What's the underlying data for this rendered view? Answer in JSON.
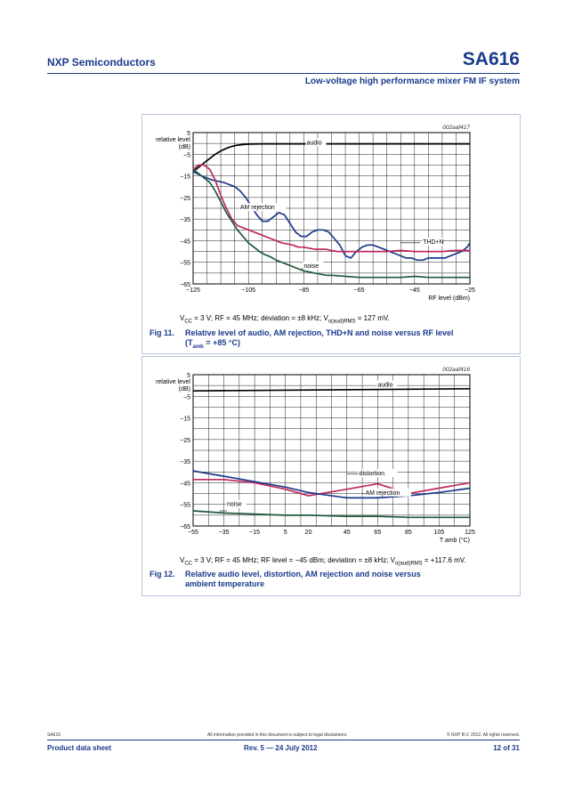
{
  "header": {
    "company": "NXP Semiconductors",
    "product": "SA616",
    "subtitle": "Low-voltage high performance mixer FM IF system"
  },
  "figures": [
    {
      "id": "fig11",
      "code": "002aaf417",
      "caption_num": "Fig 11.",
      "caption_text_main": "Relative level of audio, AM rejection, THD+N and noise versus RF level",
      "caption_text_cond_prefix": "(T",
      "caption_text_cond_sub": "amb",
      "caption_text_cond_suffix": " = +85 °C)",
      "conditions_prefix": "V",
      "conditions_sub1": "CC",
      "conditions_mid": " = 3 V; RF = 45 MHz; deviation = ±8 kHz; V",
      "conditions_sub2": "o(aud)RMS",
      "conditions_suffix": " = 127 mV."
    },
    {
      "id": "fig12",
      "code": "002aaf416",
      "caption_num": "Fig 12.",
      "caption_text_main": "Relative audio level, distortion, AM rejection and noise versus",
      "caption_text_line2": "ambient temperature",
      "conditions_prefix": "V",
      "conditions_sub1": "CC",
      "conditions_mid": " = 3 V; RF = 45 MHz; RF level = −45 dBm; deviation = ±8 kHz; V",
      "conditions_sub2": "o(aud)RMS",
      "conditions_suffix": " = +117.6 mV."
    }
  ],
  "chart_data": [
    {
      "type": "line",
      "ylabel": "relative level\n(dB)",
      "xlabel": "RF level (dBm)",
      "xlim": [
        -125,
        -25
      ],
      "ylim": [
        -65,
        5
      ],
      "xticks": [
        "−125",
        "−105",
        "−85",
        "−65",
        "−45",
        "−25"
      ],
      "xtick_values": [
        -125,
        -105,
        -85,
        -65,
        -45,
        -25
      ],
      "yticks": [
        "5",
        "−5",
        "−15",
        "−25",
        "−35",
        "−45",
        "−55",
        "−65"
      ],
      "ytick_values": [
        5,
        -5,
        -15,
        -25,
        -35,
        -45,
        -55,
        -65
      ],
      "series": [
        {
          "name": "audio",
          "color": "#000000",
          "x": [
            -125,
            -123,
            -121,
            -119,
            -117,
            -115,
            -113,
            -111,
            -109,
            -107,
            -105,
            -100,
            -90,
            -80,
            -70,
            -60,
            -50,
            -40,
            -30,
            -25
          ],
          "y": [
            -13,
            -11,
            -9,
            -7,
            -5,
            -3.5,
            -2.3,
            -1.4,
            -0.8,
            -0.5,
            -0.3,
            -0.2,
            -0.2,
            -0.2,
            -0.2,
            -0.2,
            -0.2,
            -0.2,
            -0.2,
            -0.2
          ]
        },
        {
          "name": "AM rejection",
          "color": "#1f3a8a",
          "x": [
            -125,
            -122,
            -120,
            -118,
            -116,
            -114,
            -112,
            -110,
            -108,
            -106,
            -104,
            -102,
            -100,
            -98,
            -96,
            -94,
            -92,
            -90,
            -88,
            -86,
            -84,
            -82,
            -80,
            -78,
            -76,
            -74,
            -72,
            -70,
            -68,
            -66,
            -64,
            -62,
            -60,
            -58,
            -56,
            -54,
            -52,
            -50,
            -48,
            -46,
            -44,
            -42,
            -40,
            -38,
            -36,
            -34,
            -32,
            -30,
            -28,
            -26,
            -25
          ],
          "y": [
            -13,
            -15,
            -16,
            -17,
            -17.5,
            -18,
            -19,
            -20,
            -22,
            -25,
            -29,
            -33,
            -36,
            -36,
            -34,
            -32,
            -33,
            -37,
            -41,
            -43,
            -43,
            -41,
            -40,
            -40,
            -41,
            -44,
            -47,
            -52,
            -53,
            -50,
            -48,
            -47,
            -47,
            -48,
            -49,
            -50,
            -51,
            -52,
            -53,
            -53,
            -54,
            -54,
            -53,
            -53,
            -53,
            -53,
            -52,
            -51,
            -50,
            -48,
            -46
          ]
        },
        {
          "name": "THD+N",
          "color": "#c0285f",
          "x": [
            -125,
            -123,
            -121,
            -119,
            -117,
            -115,
            -113,
            -111,
            -109,
            -107,
            -105,
            -103,
            -101,
            -99,
            -97,
            -95,
            -93,
            -91,
            -89,
            -87,
            -85,
            -83,
            -81,
            -79,
            -77,
            -75,
            -73,
            -70,
            -65,
            -60,
            -55,
            -50,
            -45,
            -40,
            -35,
            -30,
            -25
          ],
          "y": [
            -12,
            -10,
            -10,
            -12,
            -17,
            -24,
            -30,
            -35,
            -38,
            -39,
            -40,
            -41,
            -42,
            -43,
            -44,
            -45,
            -46,
            -46.5,
            -47,
            -48,
            -48,
            -48.5,
            -49,
            -49,
            -49,
            -49.5,
            -50,
            -50,
            -50,
            -50,
            -50,
            -49.5,
            -50,
            -50,
            -50,
            -49.5,
            -49.5
          ]
        },
        {
          "name": "noise",
          "color": "#1f5a3a",
          "x": [
            -125,
            -123,
            -121,
            -119,
            -117,
            -115,
            -113,
            -111,
            -109,
            -107,
            -105,
            -103,
            -101,
            -99,
            -97,
            -95,
            -93,
            -91,
            -89,
            -87,
            -85,
            -83,
            -81,
            -79,
            -77,
            -75,
            -70,
            -65,
            -60,
            -55,
            -50,
            -45,
            -40,
            -35,
            -30,
            -25
          ],
          "y": [
            -12,
            -14,
            -16,
            -18,
            -22,
            -27,
            -32,
            -36,
            -40,
            -43,
            -46,
            -48,
            -50,
            -51.5,
            -52.5,
            -54,
            -55,
            -56,
            -57,
            -58,
            -59,
            -59.5,
            -60,
            -60.5,
            -61,
            -61,
            -61.5,
            -62,
            -62,
            -62,
            -62,
            -61.5,
            -62,
            -62,
            -62,
            -62
          ]
        }
      ],
      "annotations": [
        "audio",
        "AM rejection",
        "THD+N",
        "noise"
      ]
    },
    {
      "type": "line",
      "ylabel": "relative level\n(dB)",
      "xlabel": "T amb (°C)",
      "xlim": [
        -55,
        125
      ],
      "ylim": [
        -65,
        5
      ],
      "xticks": [
        "−55",
        "−35",
        "−15",
        "5",
        "20",
        "45",
        "65",
        "85",
        "105",
        "125"
      ],
      "xtick_values": [
        -55,
        -35,
        -15,
        5,
        20,
        45,
        65,
        85,
        105,
        125
      ],
      "yticks": [
        "5",
        "−5",
        "−15",
        "−25",
        "−35",
        "−45",
        "−55",
        "−65"
      ],
      "ytick_values": [
        5,
        -5,
        -15,
        -25,
        -35,
        -45,
        -55,
        -65
      ],
      "series": [
        {
          "name": "audio",
          "color": "#000000",
          "x": [
            -55,
            125
          ],
          "y": [
            -2.5,
            -1.5
          ]
        },
        {
          "name": "distortion",
          "color": "#c0285f",
          "x": [
            -55,
            -35,
            -15,
            5,
            20,
            45,
            65,
            85,
            105,
            125
          ],
          "y": [
            -43.5,
            -43.5,
            -45,
            -48,
            -51,
            -48,
            -45.5,
            -50,
            -47.5,
            -45
          ]
        },
        {
          "name": "AM rejection",
          "color": "#1f3a8a",
          "x": [
            -55,
            -35,
            -15,
            5,
            20,
            45,
            65,
            85,
            105,
            125
          ],
          "y": [
            -39.5,
            -42,
            -44.5,
            -47,
            -49.5,
            -52,
            -52,
            -51,
            -49.5,
            -47.5
          ]
        },
        {
          "name": "noise",
          "color": "#1f5a3a",
          "x": [
            -55,
            -35,
            -15,
            5,
            20,
            45,
            65,
            85,
            105,
            125
          ],
          "y": [
            -58,
            -59,
            -59.5,
            -60,
            -60,
            -60.5,
            -60.5,
            -61,
            -61,
            -61
          ]
        }
      ],
      "annotations": [
        "audio",
        "distortion",
        "AM rejection",
        "noise"
      ]
    }
  ],
  "footer": {
    "doc_id": "SA616",
    "disclaimer": "All information provided in this document is subject to legal disclaimers.",
    "copyright": "© NXP B.V. 2012. All rights reserved.",
    "doc_type": "Product data sheet",
    "revision": "Rev. 5 — 24 July 2012",
    "page": "12 of 31"
  },
  "colors": {
    "brand": "#1a3a8c",
    "grid": "#000000"
  }
}
